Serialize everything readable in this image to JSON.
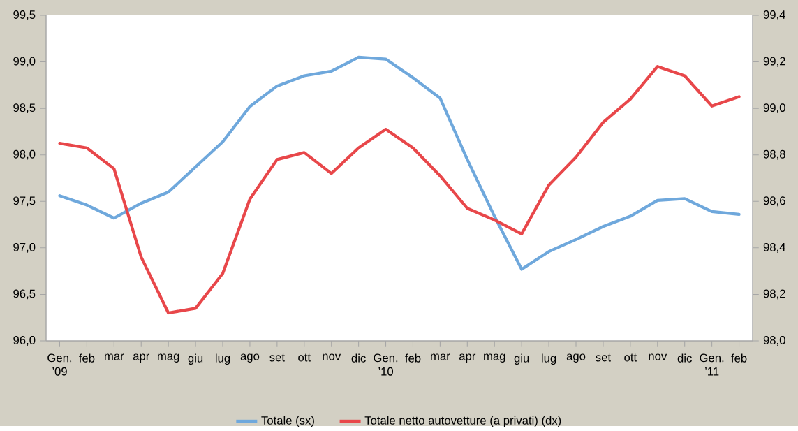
{
  "chart_data": {
    "type": "line",
    "categories": [
      "Gen. ’09",
      "feb",
      "mar",
      "apr",
      "mag",
      "giu",
      "lug",
      "ago",
      "set",
      "ott",
      "nov",
      "dic",
      "Gen. ’10",
      "feb",
      "mar",
      "apr",
      "mag",
      "giu",
      "lug",
      "ago",
      "set",
      "ott",
      "nov",
      "dic",
      "Gen. ’11",
      "feb"
    ],
    "series": [
      {
        "name": "Totale (sx)",
        "color": "#6fa8dc",
        "values": [
          97.56,
          97.46,
          97.32,
          97.48,
          97.6,
          97.87,
          98.14,
          98.52,
          98.74,
          98.85,
          98.9,
          99.05,
          99.03,
          98.83,
          98.61,
          97.95,
          97.34,
          96.77,
          96.96,
          97.09,
          97.23,
          97.34,
          97.51,
          97.53,
          97.39,
          97.36
        ]
      },
      {
        "name": "Totale netto autovetture (a privati) (dx)",
        "color": "#e8474a",
        "axis": "y2",
        "values": [
          98.85,
          98.83,
          98.74,
          98.36,
          98.12,
          98.14,
          98.29,
          98.61,
          98.78,
          98.81,
          98.72,
          98.83,
          98.91,
          98.83,
          98.71,
          98.57,
          98.52,
          98.46,
          98.67,
          98.79,
          98.94,
          99.04,
          99.18,
          99.14,
          99.01,
          99.05
        ]
      }
    ],
    "ylim": [
      96.0,
      99.5
    ],
    "yticks": [
      {
        "value": 96.0,
        "label": "96,0"
      },
      {
        "value": 96.5,
        "label": "96,5"
      },
      {
        "value": 97.0,
        "label": "97,0"
      },
      {
        "value": 97.5,
        "label": "97,5"
      },
      {
        "value": 98.0,
        "label": "98,0"
      },
      {
        "value": 98.5,
        "label": "98,5"
      },
      {
        "value": 99.0,
        "label": "99,0"
      },
      {
        "value": 99.5,
        "label": "99,5"
      }
    ],
    "y2lim": [
      98.0,
      99.4
    ],
    "y2ticks": [
      {
        "value": 98.0,
        "label": "98,0"
      },
      {
        "value": 98.2,
        "label": "98,2"
      },
      {
        "value": 98.4,
        "label": "98,4"
      },
      {
        "value": 98.6,
        "label": "98,6"
      },
      {
        "value": 98.8,
        "label": "98,8"
      },
      {
        "value": 99.0,
        "label": "99,0"
      },
      {
        "value": 99.2,
        "label": "99,2"
      },
      {
        "value": 99.4,
        "label": "99,4"
      }
    ],
    "legend": "bottom",
    "grid": false,
    "marker": "none",
    "line_style": "solid"
  }
}
